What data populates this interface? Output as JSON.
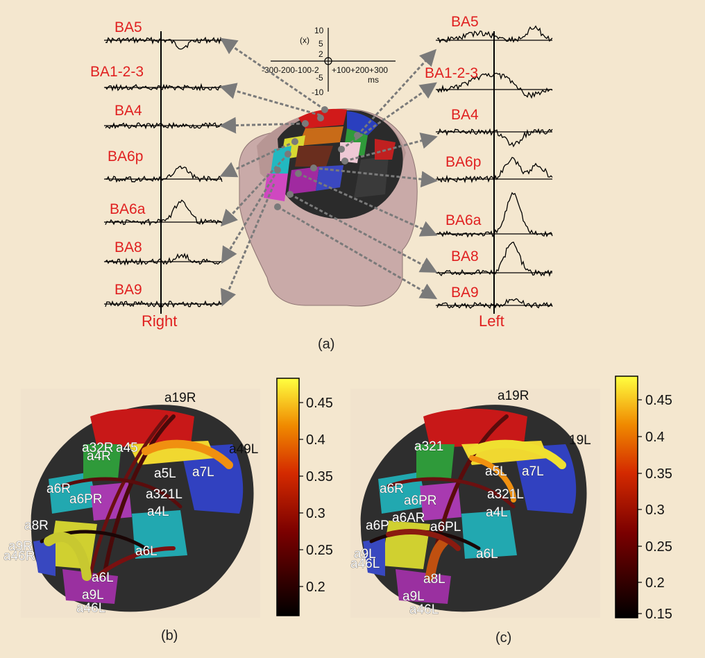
{
  "panel_a": {
    "right_labels": [
      "BA5",
      "BA1-2-3",
      "BA4",
      "BA6p",
      "BA6a",
      "BA8",
      "BA9"
    ],
    "left_labels": [
      "BA5",
      "BA1-2-3",
      "BA4",
      "BA6p",
      "BA6a",
      "BA8",
      "BA9"
    ],
    "right_side": "Right",
    "left_side": "Left",
    "axis_unit_y": "(x)",
    "axis_unit_x": "ms",
    "y_ticks": [
      "10",
      "5",
      "2",
      "-2",
      "-5",
      "-10"
    ],
    "x_ticks": "-300-200-100-2",
    "x_ticks_pos": "+100+200+300",
    "caption": "(a)"
  },
  "panel_b": {
    "caption": "(b)",
    "labels": [
      "a19R",
      "a32R",
      "a4R",
      "a45",
      "a49L",
      "a5L",
      "a7L",
      "a6R",
      "a6PR",
      "a321L",
      "a4L",
      "a8R",
      "a9R",
      "a46R",
      "a6L",
      "a6L",
      "a9L",
      "a46L"
    ],
    "colorbar_ticks": [
      "0.45",
      "0.4",
      "0.35",
      "0.3",
      "0.25",
      "0.2"
    ]
  },
  "panel_c": {
    "caption": "(c)",
    "labels": [
      "a19R",
      "a321",
      "19L",
      "a5L",
      "a7L",
      "a6R",
      "a6PR",
      "a321L",
      "a4L",
      "a6P",
      "a6AR",
      "a6PL",
      "a9L",
      "a46L",
      "a6L",
      "a8L",
      "a9L",
      "a46L"
    ],
    "colorbar_ticks": [
      "0.45",
      "0.4",
      "0.35",
      "0.3",
      "0.25",
      "0.2",
      "0.15"
    ]
  },
  "colors": {
    "label_red": "#e02020",
    "background": "#f4e7cf"
  }
}
